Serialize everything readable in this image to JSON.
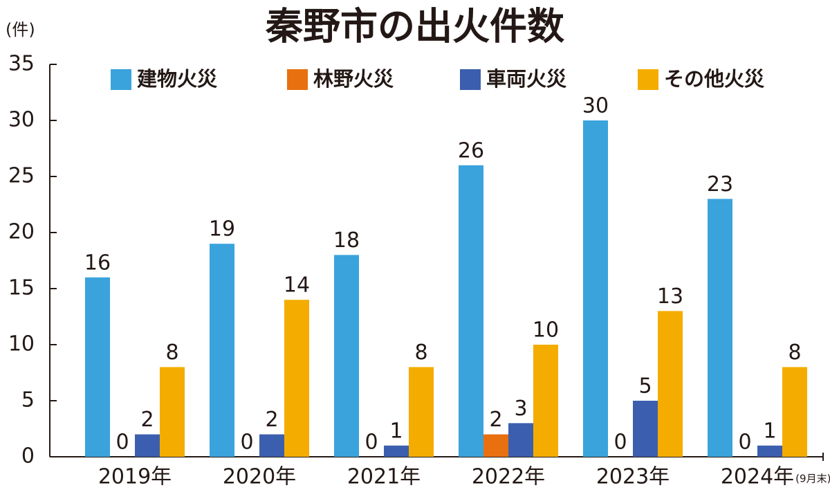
{
  "chart_data": {
    "type": "bar",
    "title": "秦野市の出火件数",
    "y_label": "(件)",
    "categories": [
      "2019年",
      "2020年",
      "2021年",
      "2022年",
      "2023年",
      "2024年"
    ],
    "annotation": "(9月末)",
    "series": [
      {
        "name": "建物火災",
        "color": "#3aa3dc",
        "values": [
          16,
          19,
          18,
          26,
          30,
          23
        ]
      },
      {
        "name": "林野火災",
        "color": "#e8700f",
        "values": [
          0,
          0,
          0,
          2,
          0,
          0
        ]
      },
      {
        "name": "車両火災",
        "color": "#3b5fae",
        "values": [
          2,
          2,
          1,
          3,
          5,
          1
        ]
      },
      {
        "name": "その他火災",
        "color": "#f5ac00",
        "values": [
          8,
          14,
          8,
          10,
          13,
          8
        ]
      }
    ],
    "ylim": [
      0,
      35
    ],
    "yticks": [
      0,
      5,
      10,
      15,
      20,
      25,
      30,
      35
    ],
    "grid": false,
    "legend": "top"
  }
}
